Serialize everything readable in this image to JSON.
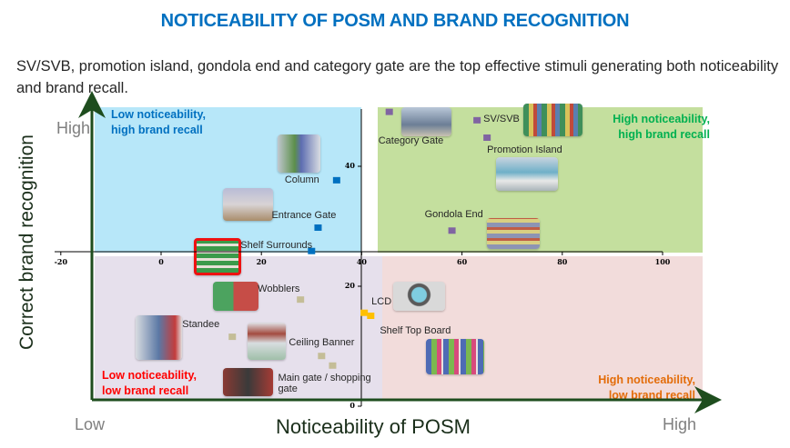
{
  "title": "NOTICEABILITY OF POSM AND BRAND RECOGNITION",
  "subtitle": "SV/SVB, promotion island, gondola end and category gate are the top effective stimuli generating both noticeability and brand recall.",
  "axes": {
    "y_title": "Correct brand recognition",
    "x_title": "Noticeability of POSM",
    "y_high": "High",
    "x_low": "Low",
    "x_high": "High"
  },
  "quadrants": {
    "top_left": {
      "line1": "Low noticeability,",
      "line2": "high brand recall",
      "color": "#0070c0",
      "bg": "#b7e7f9"
    },
    "top_right": {
      "line1": "High noticeability,",
      "line2": "high brand recall",
      "color": "#00b050",
      "bg": "#c4df9e"
    },
    "bottom_left": {
      "line1": "Low noticeability,",
      "line2": "low brand recall",
      "color": "#ff0000",
      "bg": "#e6e0ec"
    },
    "bottom_right": {
      "line1": "High noticeability,",
      "line2": "low brand recall",
      "color": "#e36c09",
      "bg": "#f2dcdb"
    }
  },
  "chart_data": {
    "type": "scatter",
    "title": "",
    "xlabel": "Noticeability of POSM",
    "ylabel": "Correct brand recognition",
    "xlim": [
      -20,
      100
    ],
    "ylim": [
      0,
      50
    ],
    "x_ticks": [
      "-20",
      "0",
      "20",
      "40",
      "60",
      "80",
      "100"
    ],
    "y_ticks": [
      "0",
      "20",
      "40"
    ],
    "grid": false,
    "points": [
      {
        "name": "Category Gate",
        "x": 45.5,
        "y": 49,
        "color": "#8064a2"
      },
      {
        "name": "SV/SVB",
        "x": 63,
        "y": 47.6,
        "color": "#8064a2"
      },
      {
        "name": "Promotion Island",
        "x": 65,
        "y": 44.7,
        "color": "#8064a2"
      },
      {
        "name": "Gondola End",
        "x": 58,
        "y": 29.2,
        "color": "#8064a2"
      },
      {
        "name": "Column",
        "x": 35,
        "y": 37.6,
        "color": "#0070c0"
      },
      {
        "name": "Entrance Gate",
        "x": 31.3,
        "y": 29.7,
        "color": "#0070c0"
      },
      {
        "name": "Shelf Surrounds",
        "x": 30,
        "y": 25.8,
        "color": "#0070c0"
      },
      {
        "name": "Wobblers",
        "x": 27.8,
        "y": 17.7,
        "color": "#c4bd97"
      },
      {
        "name": "LCD",
        "x": 40.5,
        "y": 15.5,
        "color": "#ffc000"
      },
      {
        "name": "Shelf Top Board",
        "x": 41.8,
        "y": 15,
        "color": "#ffc000"
      },
      {
        "name": "Standee",
        "x": 14.2,
        "y": 11.5,
        "color": "#c4bd97"
      },
      {
        "name": "Ceiling Banner",
        "x": 32,
        "y": 8.3,
        "color": "#c4bd97"
      },
      {
        "name": "Main gate / shopping gate",
        "x": 34.2,
        "y": 6.7,
        "color": "#c4bd97"
      }
    ]
  }
}
